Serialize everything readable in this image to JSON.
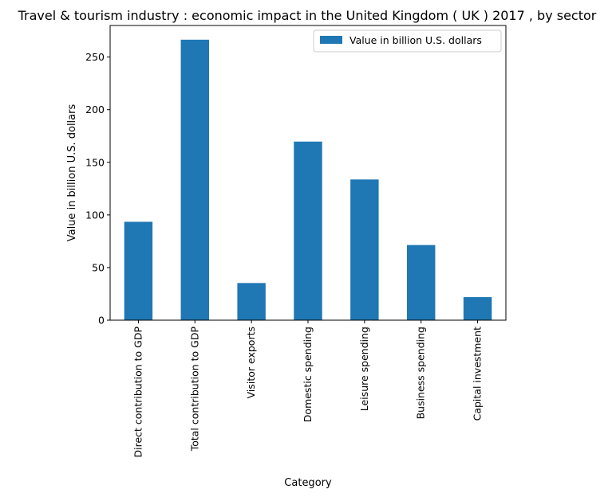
{
  "chart_data": {
    "type": "bar",
    "title": "Travel & tourism industry : economic impact in the United Kingdom ( UK ) 2017 , by sector",
    "xlabel": "Category",
    "ylabel": "Value in billion U.S. dollars",
    "categories": [
      "Direct contribution to GDP",
      "Total contribution to GDP",
      "Visitor exports",
      "Domestic spending",
      "Leisure spending",
      "Business spending",
      "Capital investment"
    ],
    "series": [
      {
        "name": "Value in billion U.S. dollars",
        "color": "#1f77b4",
        "values": [
          93.5,
          266.5,
          35.3,
          169.7,
          133.7,
          71.4,
          21.9
        ]
      }
    ],
    "yticks": [
      0,
      50,
      100,
      150,
      200,
      250
    ],
    "ylim": [
      0,
      280
    ],
    "grid": false,
    "legend_position": "top-right"
  }
}
